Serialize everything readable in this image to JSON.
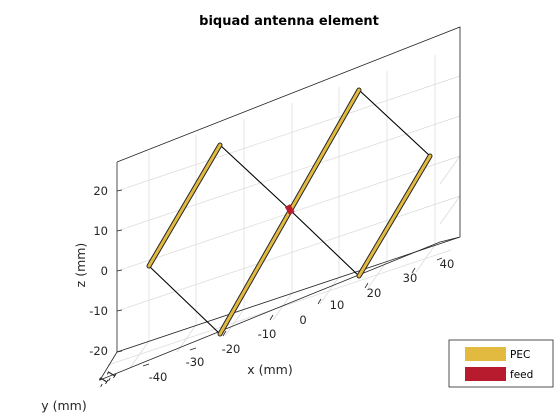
{
  "title": "biquad antenna element",
  "axes": {
    "xlabel": "x (mm)",
    "ylabel": "y (mm)",
    "zlabel": "z (mm)",
    "x_ticks": [
      "-20",
      "-10",
      "0",
      "10",
      "20",
      "30",
      "40"
    ],
    "y_ticks": [
      "-40",
      "-30"
    ],
    "y_ticks_clipped": [
      "-1",
      "-1"
    ],
    "z_ticks": [
      "-20",
      "-10",
      "0",
      "10",
      "20"
    ]
  },
  "legend": {
    "items": [
      {
        "label": "PEC",
        "color": "#e3ba40"
      },
      {
        "label": "feed",
        "color": "#b81b2e"
      }
    ]
  },
  "colors": {
    "pec": "#e3ba40",
    "feed": "#b81b2e",
    "wire": "#000000"
  }
}
